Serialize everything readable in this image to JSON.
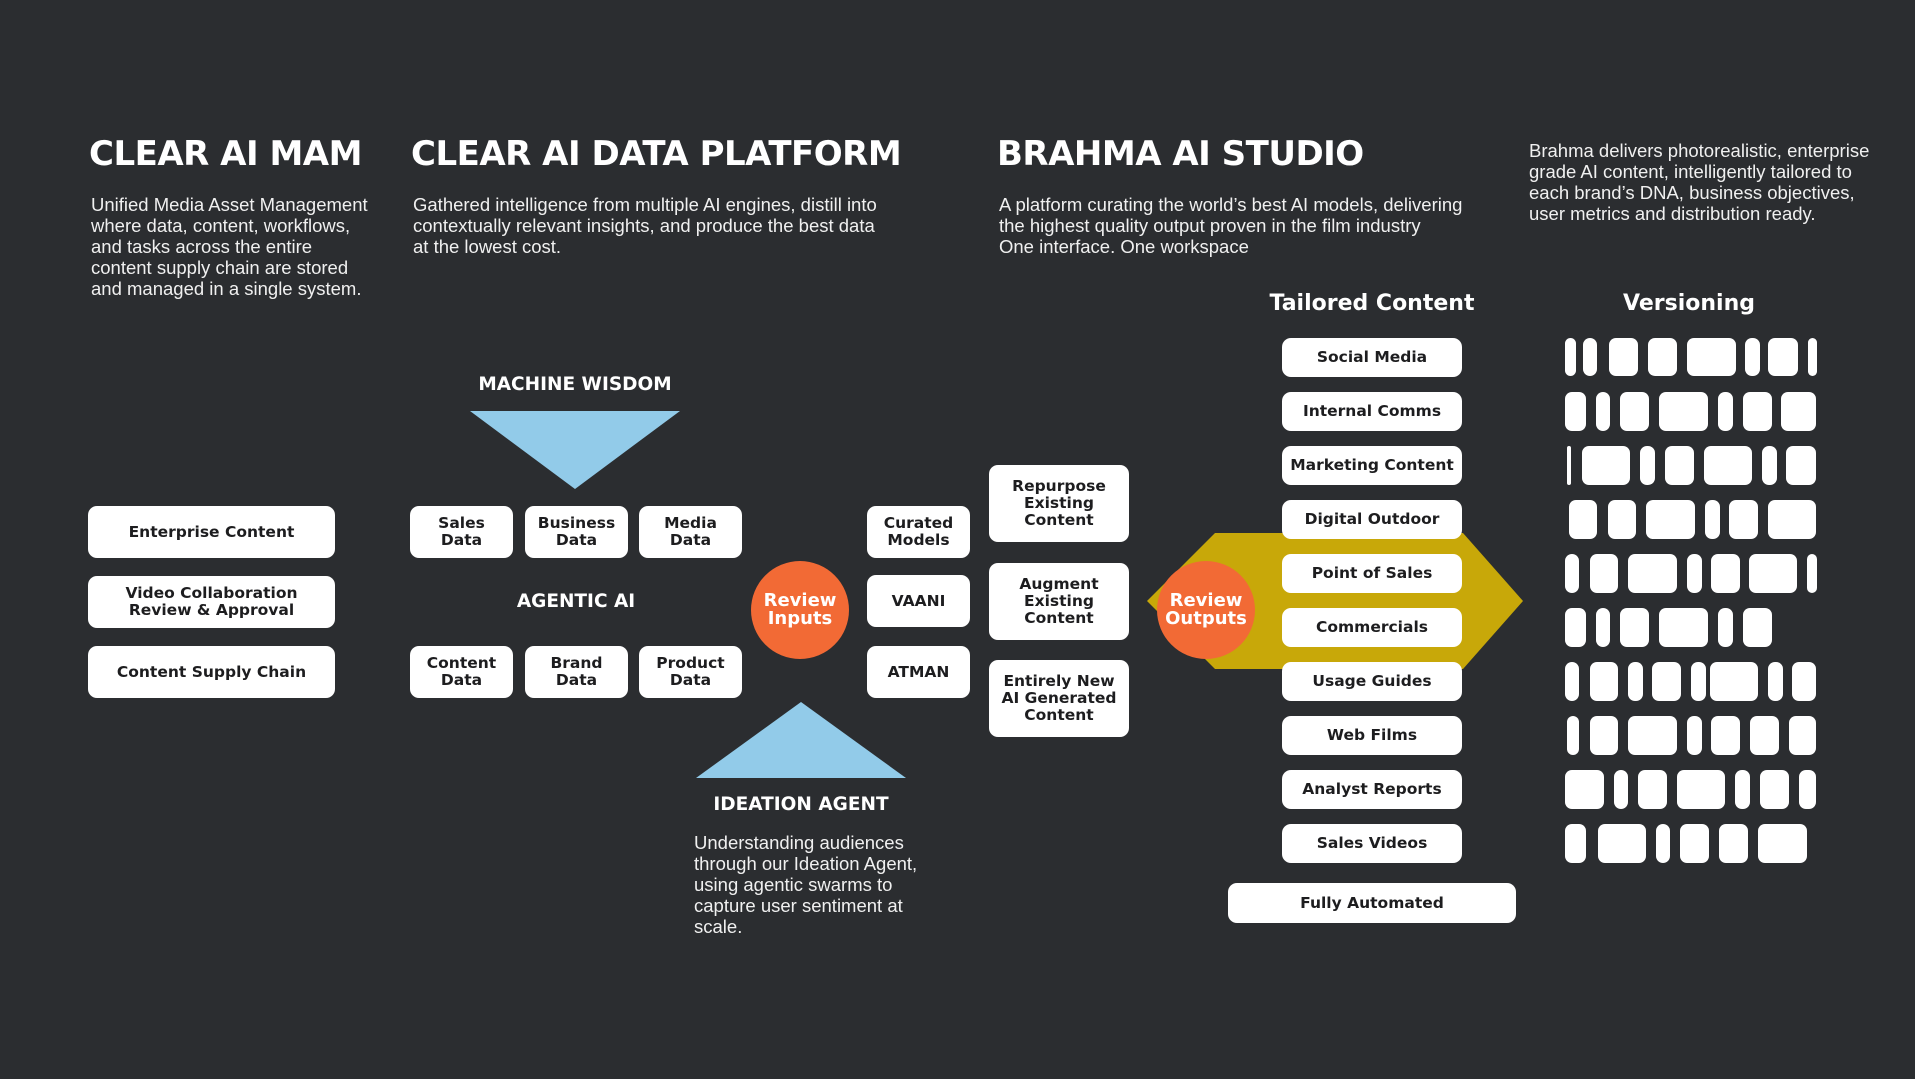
{
  "colors": {
    "background": "#2b2d30",
    "accent_orange": "#f26a35",
    "accent_blue": "#92cbe9",
    "accent_gold": "#c8a809",
    "box": "#ffffff"
  },
  "mam": {
    "title": "CLEAR AI MAM",
    "description": "Unified Media Asset Management\nwhere data, content, workflows,\nand tasks across the entire\ncontent supply chain are stored\nand managed in a single system.",
    "items": [
      "Enterprise Content",
      "Video Collaboration\nReview & Approval",
      "Content Supply Chain"
    ]
  },
  "data_platform": {
    "title": "CLEAR AI DATA PLATFORM",
    "description": "Gathered intelligence from multiple AI engines, distill into\ncontextually relevant insights, and produce the best data\nat the lowest cost.",
    "machine_wisdom": "MACHINE WISDOM",
    "agentic_ai": "AGENTIC AI",
    "top_data": [
      "Sales\nData",
      "Business\nData",
      "Media\nData"
    ],
    "bottom_data": [
      "Content\nData",
      "Brand\nData",
      "Product\nData"
    ],
    "review_inputs": "Review\nInputs",
    "ideation_agent": "IDEATION AGENT",
    "ideation_description": "Understanding audiences\nthrough our Ideation Agent,\nusing agentic swarms to\ncapture user sentiment at\nscale."
  },
  "studio": {
    "title": "BRAHMA AI STUDIO",
    "description": "A platform curating the world’s best AI models, delivering\nthe highest quality output proven in the film industry\nOne interface. One workspace",
    "models": [
      "Curated\nModels",
      "VAANI",
      "ATMAN"
    ],
    "content_modes": [
      "Repurpose\nExisting\nContent",
      "Augment\nExisting\nContent",
      "Entirely New\nAI Generated\nContent"
    ],
    "review_outputs": "Review\nOutputs"
  },
  "tailored": {
    "title": "Tailored Content",
    "items": [
      "Social Media",
      "Internal Comms",
      "Marketing Content",
      "Digital Outdoor",
      "Point of Sales",
      "Commercials",
      "Usage Guides",
      "Web Films",
      "Analyst Reports",
      "Sales Videos"
    ],
    "footer": "Fully Automated"
  },
  "versioning": {
    "title": "Versioning",
    "description": "Brahma delivers photorealistic, enterprise\ngrade AI content, intelligently tailored to\neach brand’s DNA, business objectives,\nuser metrics and distribution ready."
  }
}
